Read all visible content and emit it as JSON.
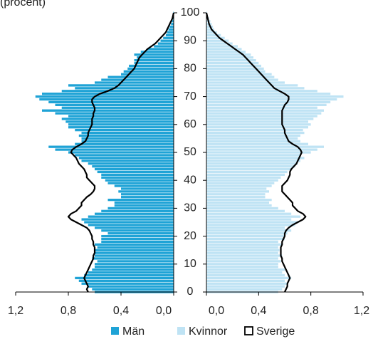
{
  "chart_data": {
    "type": "pyramid",
    "title": "(procent)",
    "categories": [
      0,
      1,
      2,
      3,
      4,
      5,
      6,
      7,
      8,
      9,
      10,
      11,
      12,
      13,
      14,
      15,
      16,
      17,
      18,
      19,
      20,
      21,
      22,
      23,
      24,
      25,
      26,
      27,
      28,
      29,
      30,
      31,
      32,
      33,
      34,
      35,
      36,
      37,
      38,
      39,
      40,
      41,
      42,
      43,
      44,
      45,
      46,
      47,
      48,
      49,
      50,
      51,
      52,
      53,
      54,
      55,
      56,
      57,
      58,
      59,
      60,
      61,
      62,
      63,
      64,
      65,
      66,
      67,
      68,
      69,
      70,
      71,
      72,
      73,
      74,
      75,
      76,
      77,
      78,
      79,
      80,
      81,
      82,
      83,
      84,
      85,
      86,
      87,
      88,
      89,
      90,
      91,
      92,
      93,
      94,
      95,
      96,
      97,
      98,
      99,
      100
    ],
    "ylim": [
      0,
      100
    ],
    "yticks": [
      0,
      10,
      20,
      30,
      40,
      50,
      60,
      70,
      80,
      90,
      100
    ],
    "xlim": [
      1.2,
      0
    ],
    "xticks": [
      {
        "value": 1.2,
        "label": "1,2"
      },
      {
        "value": 0.8,
        "label": "0,8"
      },
      {
        "value": 0.4,
        "label": "0,4"
      },
      {
        "value": 0,
        "label": "0,0"
      }
    ],
    "x2lim": [
      0,
      1.2
    ],
    "x2ticks": [
      {
        "value": 0,
        "label": "0,0"
      },
      {
        "value": 0.4,
        "label": "0,4"
      },
      {
        "value": 0.8,
        "label": "0,8"
      },
      {
        "value": 1.2,
        "label": "1,2"
      }
    ],
    "series": [
      {
        "name": "Män",
        "color": "#1fa3d6",
        "values": [
          0.6,
          0.62,
          0.65,
          0.7,
          0.72,
          0.75,
          0.68,
          0.65,
          0.62,
          0.6,
          0.6,
          0.58,
          0.62,
          0.6,
          0.6,
          0.6,
          0.58,
          0.6,
          0.55,
          0.55,
          0.55,
          0.5,
          0.55,
          0.6,
          0.65,
          0.68,
          0.7,
          0.65,
          0.6,
          0.55,
          0.5,
          0.45,
          0.45,
          0.5,
          0.4,
          0.4,
          0.42,
          0.4,
          0.45,
          0.5,
          0.52,
          0.55,
          0.55,
          0.58,
          0.6,
          0.62,
          0.65,
          0.7,
          0.72,
          0.75,
          0.8,
          0.9,
          0.95,
          0.75,
          0.7,
          0.7,
          0.72,
          0.7,
          0.75,
          0.8,
          0.8,
          0.82,
          0.85,
          0.8,
          0.9,
          1.0,
          0.85,
          0.9,
          0.95,
          1.02,
          1.05,
          1.0,
          0.85,
          0.75,
          0.8,
          0.6,
          0.55,
          0.5,
          0.4,
          0.38,
          0.35,
          0.34,
          0.3,
          0.3,
          0.28,
          0.3,
          0.25,
          0.2,
          0.15,
          0.12,
          0.1,
          0.08,
          0.06,
          0.05,
          0.04,
          0.03,
          0.02,
          0.015,
          0.01,
          0.005,
          0.003
        ]
      },
      {
        "name": "Kvinnor",
        "color": "#bfe3f4",
        "values": [
          0.55,
          0.58,
          0.6,
          0.62,
          0.6,
          0.65,
          0.6,
          0.58,
          0.6,
          0.55,
          0.55,
          0.57,
          0.55,
          0.58,
          0.55,
          0.56,
          0.55,
          0.58,
          0.55,
          0.6,
          0.6,
          0.62,
          0.65,
          0.6,
          0.68,
          0.7,
          0.65,
          0.72,
          0.65,
          0.6,
          0.55,
          0.5,
          0.48,
          0.5,
          0.45,
          0.45,
          0.48,
          0.46,
          0.5,
          0.52,
          0.55,
          0.57,
          0.6,
          0.62,
          0.65,
          0.68,
          0.7,
          0.72,
          0.75,
          0.72,
          0.8,
          0.85,
          0.9,
          0.78,
          0.72,
          0.7,
          0.72,
          0.75,
          0.74,
          0.78,
          0.8,
          0.78,
          0.82,
          0.85,
          0.88,
          0.9,
          0.85,
          0.92,
          0.95,
          1.0,
          1.05,
          0.95,
          0.85,
          0.75,
          0.7,
          0.6,
          0.55,
          0.52,
          0.5,
          0.45,
          0.44,
          0.42,
          0.4,
          0.38,
          0.36,
          0.34,
          0.3,
          0.27,
          0.24,
          0.2,
          0.17,
          0.14,
          0.11,
          0.08,
          0.06,
          0.05,
          0.04,
          0.03,
          0.02,
          0.01,
          0.005
        ]
      },
      {
        "name": "Sverige",
        "color": "#000000",
        "values_left": [
          0.65,
          0.66,
          0.65,
          0.66,
          0.67,
          0.68,
          0.67,
          0.66,
          0.65,
          0.64,
          0.63,
          0.62,
          0.61,
          0.61,
          0.6,
          0.6,
          0.6,
          0.61,
          0.61,
          0.62,
          0.62,
          0.63,
          0.64,
          0.66,
          0.7,
          0.74,
          0.78,
          0.8,
          0.78,
          0.74,
          0.72,
          0.7,
          0.7,
          0.68,
          0.66,
          0.63,
          0.61,
          0.6,
          0.6,
          0.62,
          0.64,
          0.66,
          0.66,
          0.67,
          0.68,
          0.7,
          0.72,
          0.73,
          0.74,
          0.76,
          0.78,
          0.77,
          0.74,
          0.7,
          0.67,
          0.66,
          0.65,
          0.65,
          0.64,
          0.63,
          0.62,
          0.62,
          0.62,
          0.61,
          0.61,
          0.6,
          0.6,
          0.61,
          0.62,
          0.62,
          0.6,
          0.56,
          0.5,
          0.45,
          0.42,
          0.4,
          0.38,
          0.36,
          0.34,
          0.32,
          0.3,
          0.29,
          0.28,
          0.27,
          0.26,
          0.24,
          0.22,
          0.2,
          0.17,
          0.14,
          0.12,
          0.1,
          0.08,
          0.06,
          0.05,
          0.04,
          0.03,
          0.02,
          0.01,
          0.005,
          0
        ],
        "values_right": [
          0.6,
          0.61,
          0.62,
          0.62,
          0.63,
          0.64,
          0.63,
          0.62,
          0.61,
          0.6,
          0.59,
          0.58,
          0.58,
          0.57,
          0.57,
          0.57,
          0.57,
          0.58,
          0.58,
          0.59,
          0.6,
          0.6,
          0.61,
          0.63,
          0.66,
          0.7,
          0.74,
          0.76,
          0.74,
          0.7,
          0.68,
          0.66,
          0.66,
          0.64,
          0.62,
          0.6,
          0.58,
          0.58,
          0.58,
          0.6,
          0.62,
          0.63,
          0.64,
          0.64,
          0.65,
          0.67,
          0.69,
          0.7,
          0.71,
          0.72,
          0.73,
          0.72,
          0.7,
          0.66,
          0.63,
          0.62,
          0.61,
          0.6,
          0.6,
          0.59,
          0.58,
          0.58,
          0.58,
          0.58,
          0.58,
          0.58,
          0.59,
          0.6,
          0.62,
          0.63,
          0.63,
          0.6,
          0.56,
          0.52,
          0.5,
          0.48,
          0.46,
          0.44,
          0.42,
          0.4,
          0.38,
          0.36,
          0.34,
          0.32,
          0.3,
          0.28,
          0.25,
          0.22,
          0.19,
          0.16,
          0.13,
          0.1,
          0.08,
          0.06,
          0.04,
          0.03,
          0.02,
          0.015,
          0.01,
          0.005,
          0
        ]
      }
    ]
  }
}
